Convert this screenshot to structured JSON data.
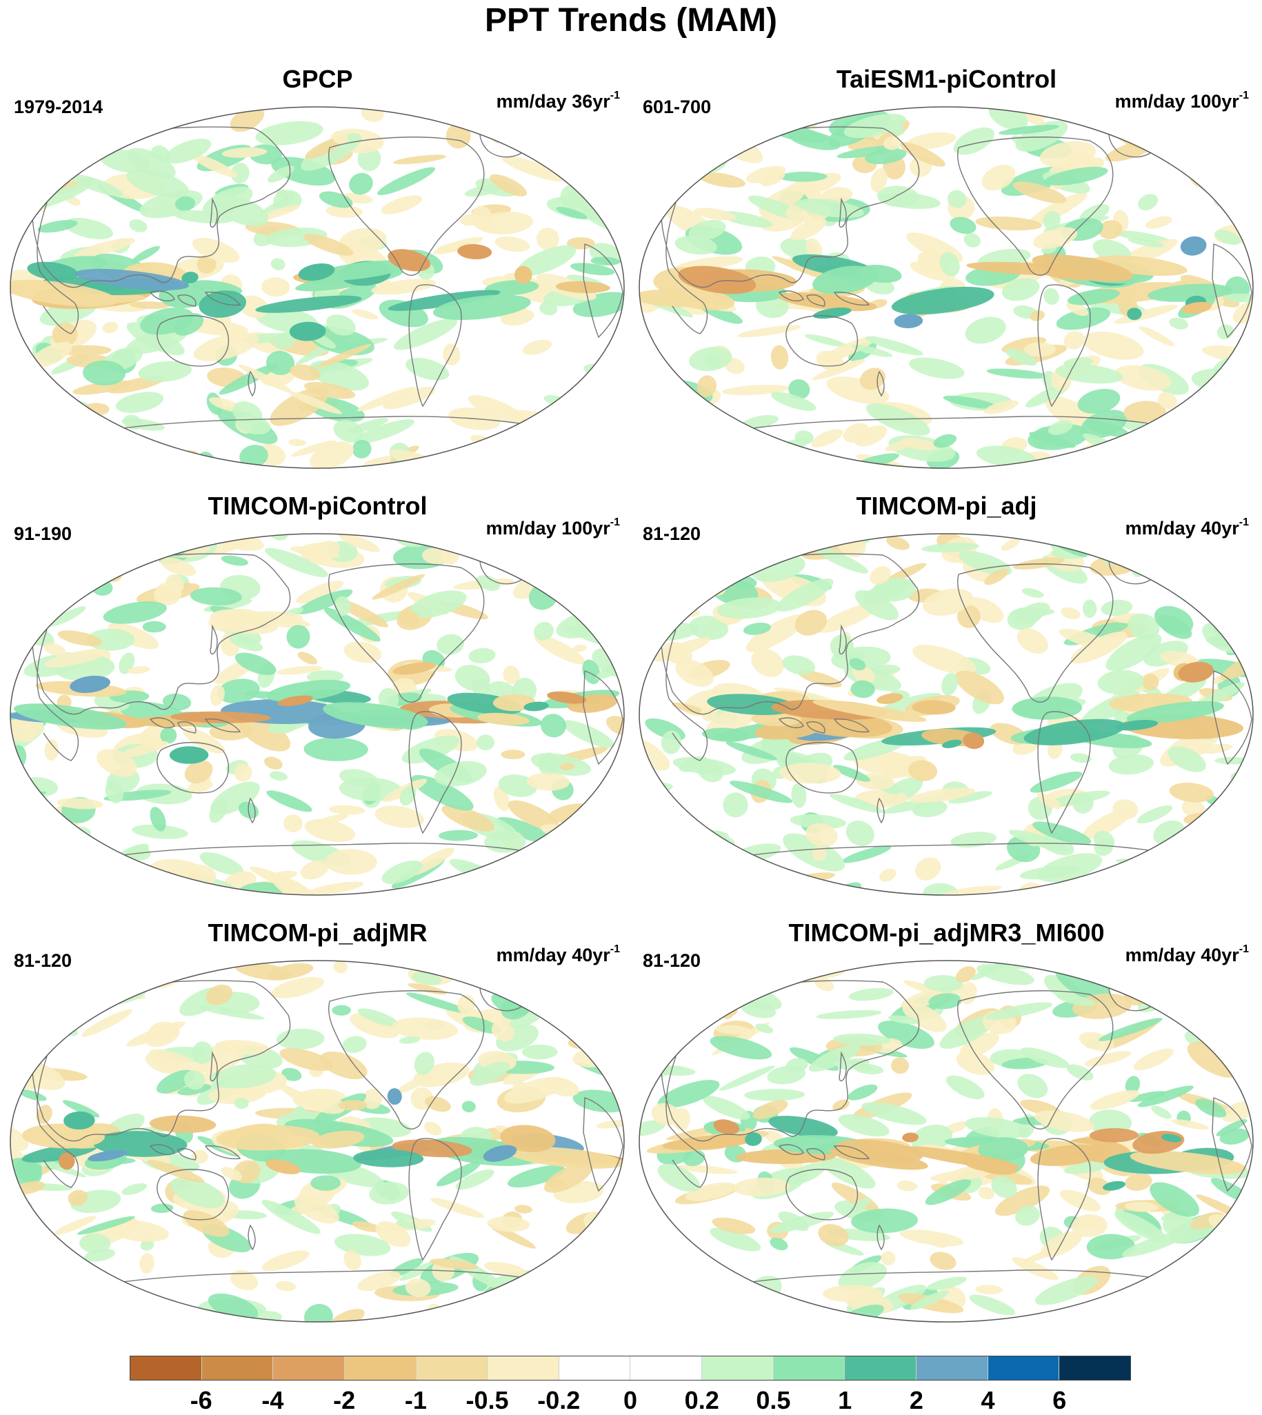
{
  "title": "PPT Trends (MAM)",
  "colors": {
    "dry_strong": "#b5652a",
    "wet_strong": "#043254",
    "coastline": "#777777"
  },
  "chart_data": {
    "type": "filled-contour-maps",
    "projection": "Robinson (Pacific-centered)",
    "levels": [
      -6,
      -4,
      -2,
      -1,
      -0.5,
      -0.2,
      0,
      0.2,
      0.5,
      1,
      2,
      4,
      6
    ],
    "level_labels": [
      "-6",
      "-4",
      "-2",
      "-1",
      "-0.5",
      "-0.2",
      "0",
      "0.2",
      "0.5",
      "1",
      "2",
      "4",
      "6"
    ],
    "palette": [
      "#b5652a",
      "#cd8b48",
      "#dea060",
      "#ecc57e",
      "#f3dc9f",
      "#f9eec4",
      "#ffffff",
      "#ffffff",
      "#c8f5c8",
      "#8ee5b0",
      "#4fbd9b",
      "#6aa5c6",
      "#0b6aaf",
      "#043254"
    ],
    "panels": [
      {
        "title": "GPCP",
        "period": "1979-2014",
        "units": "mm/day 36yr",
        "units_exp": "-1"
      },
      {
        "title": "TaiESM1-piControl",
        "period": "601-700",
        "units": "mm/day 100yr",
        "units_exp": "-1"
      },
      {
        "title": "TIMCOM-piControl",
        "period": "91-190",
        "units": "mm/day 100yr",
        "units_exp": "-1"
      },
      {
        "title": "TIMCOM-pi_adj",
        "period": "81-120",
        "units": "mm/day 40yr",
        "units_exp": "-1"
      },
      {
        "title": "TIMCOM-pi_adjMR",
        "period": "81-120",
        "units": "mm/day 40yr",
        "units_exp": "-1"
      },
      {
        "title": "TIMCOM-pi_adjMR3_MI600",
        "period": "81-120",
        "units": "mm/day 40yr",
        "units_exp": "-1"
      }
    ]
  }
}
